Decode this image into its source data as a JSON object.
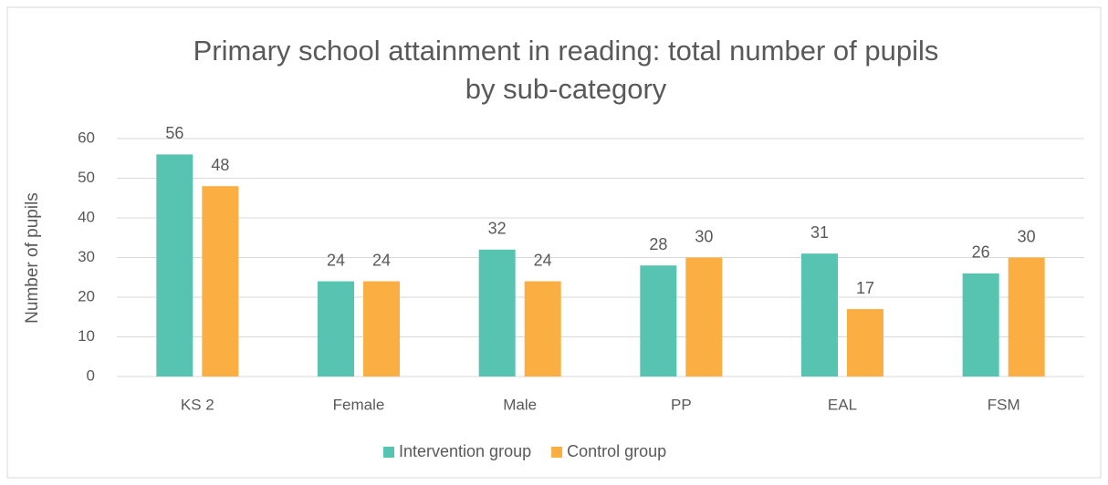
{
  "chart_data": {
    "type": "bar",
    "title": "Primary school attainment in reading: total number of pupils",
    "subtitle": "by sub-category",
    "y_label": "Number of pupils",
    "categories": [
      "KS 2",
      "Female",
      "Male",
      "PP",
      "EAL",
      "FSM"
    ],
    "series": [
      {
        "name": "Intervention group",
        "color": "#56c4b0",
        "values": [
          56,
          24,
          32,
          28,
          31,
          26
        ]
      },
      {
        "name": "Control group",
        "color": "#fbae42",
        "values": [
          48,
          24,
          24,
          30,
          17,
          30
        ]
      }
    ],
    "ylim": [
      0,
      60
    ],
    "yticks": [
      0,
      10,
      20,
      30,
      40,
      50,
      60
    ],
    "grid": true,
    "legend": "bottom"
  }
}
